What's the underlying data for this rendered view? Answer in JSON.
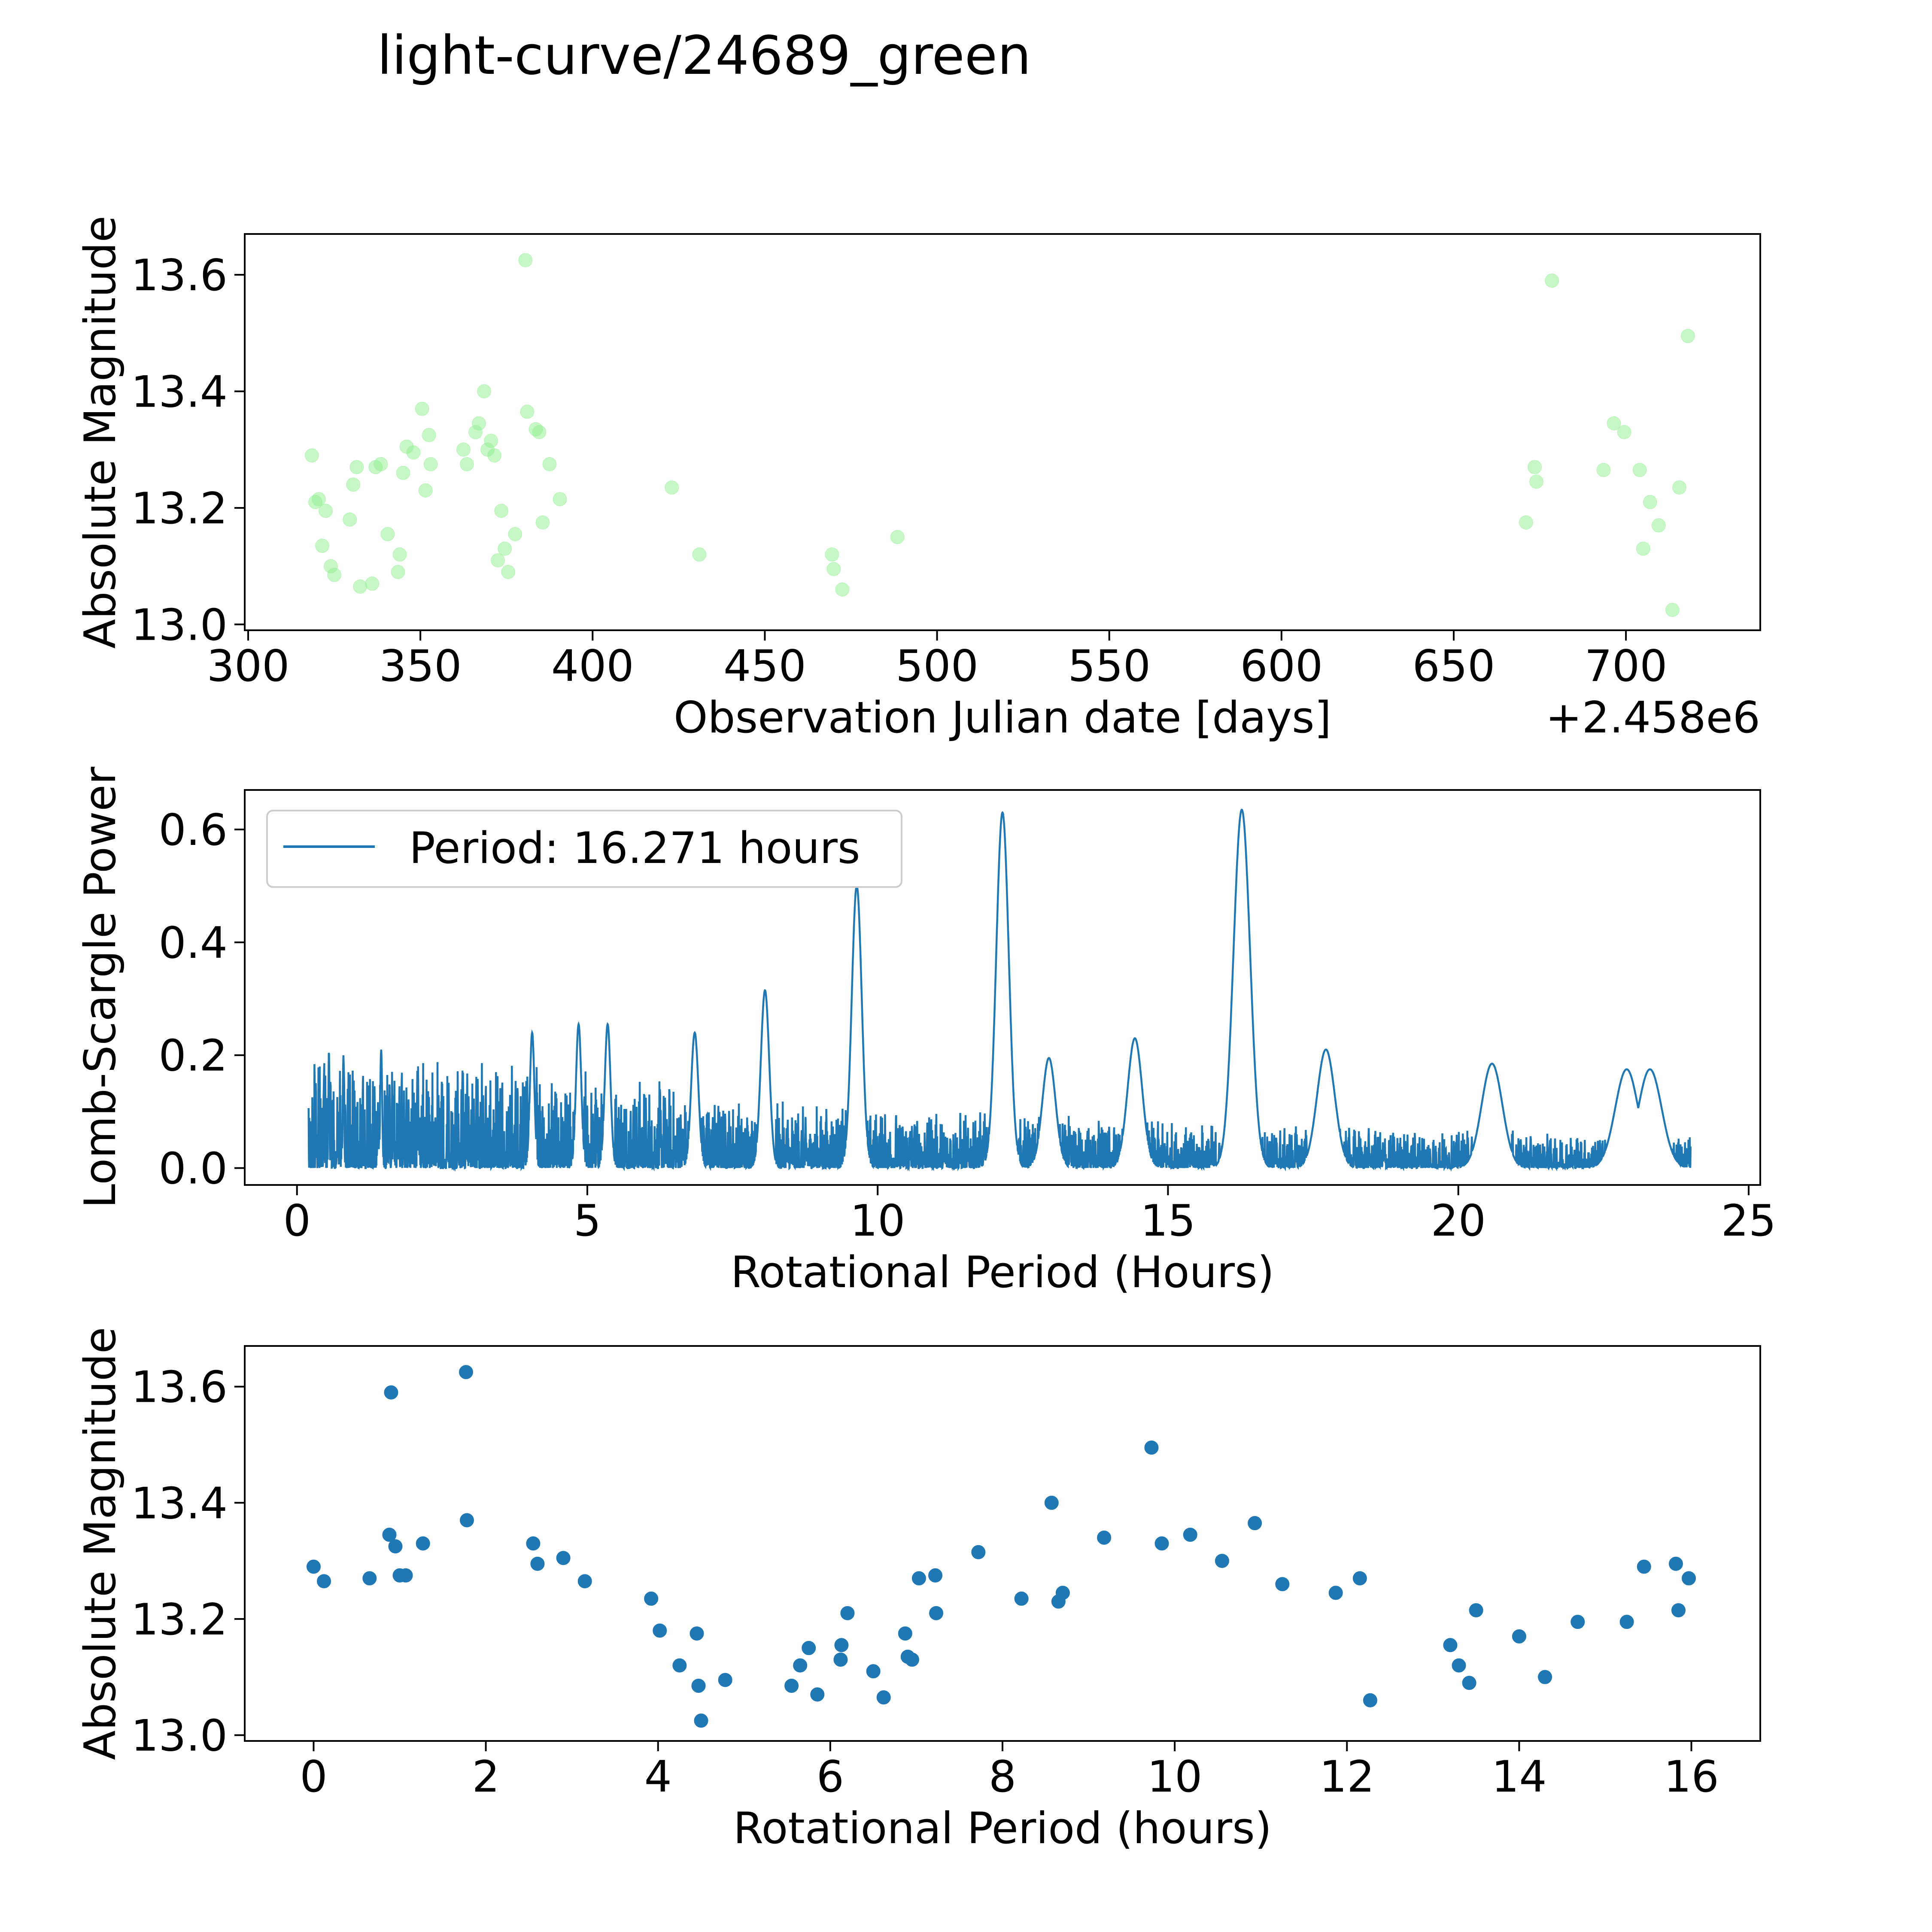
{
  "figure": {
    "title": "light-curve/24689_green"
  },
  "colors": {
    "light_curve_points": "#90ee90",
    "periodogram_line": "#1f77b4",
    "folded_points": "#1f77b4",
    "axes": "#000000",
    "background": "#ffffff"
  },
  "chart_data": [
    {
      "type": "scatter",
      "name": "light-curve",
      "title": "",
      "xlabel": "Observation Julian date [days]",
      "ylabel": "Absolute Magnitude",
      "offset_text": "+2.458e6",
      "xlim": [
        299,
        739
      ],
      "ylim": [
        12.99,
        13.67
      ],
      "xticks": [
        300,
        350,
        400,
        450,
        500,
        550,
        600,
        650,
        700
      ],
      "yticks": [
        13.0,
        13.2,
        13.4,
        13.6
      ],
      "ytick_labels": [
        "13.0",
        "13.2",
        "13.4",
        "13.6"
      ],
      "point_alpha": 0.5,
      "x": [
        318.5,
        319.5,
        320.5,
        321.5,
        322.5,
        324.0,
        325.0,
        329.5,
        330.5,
        331.5,
        332.5,
        336.0,
        337.0,
        338.5,
        340.5,
        343.5,
        344.0,
        345.0,
        346.0,
        348.0,
        350.5,
        351.5,
        352.5,
        353.0,
        362.5,
        363.5,
        366.0,
        367.0,
        368.5,
        369.5,
        370.5,
        371.5,
        372.5,
        373.5,
        374.5,
        375.5,
        377.5,
        380.5,
        381.0,
        383.5,
        384.5,
        385.5,
        387.5,
        390.5,
        423.0,
        431.0,
        469.5,
        470.0,
        472.5,
        488.5,
        671.0,
        673.5,
        674.0,
        678.5,
        693.5,
        696.5,
        699.5,
        704.0,
        705.0,
        707.0,
        709.5,
        713.5,
        715.5,
        718.0
      ],
      "y": [
        13.29,
        13.21,
        13.215,
        13.135,
        13.195,
        13.1,
        13.085,
        13.18,
        13.24,
        13.27,
        13.065,
        13.07,
        13.27,
        13.275,
        13.155,
        13.09,
        13.12,
        13.26,
        13.305,
        13.295,
        13.37,
        13.23,
        13.325,
        13.275,
        13.3,
        13.275,
        13.33,
        13.345,
        13.4,
        13.3,
        13.315,
        13.29,
        13.11,
        13.195,
        13.13,
        13.09,
        13.155,
        13.625,
        13.365,
        13.335,
        13.33,
        13.175,
        13.275,
        13.215,
        13.235,
        13.12,
        13.12,
        13.095,
        13.06,
        13.15,
        13.175,
        13.27,
        13.245,
        13.59,
        13.265,
        13.345,
        13.33,
        13.265,
        13.13,
        13.21,
        13.17,
        13.025,
        13.235,
        13.495
      ]
    },
    {
      "type": "line",
      "name": "periodogram",
      "xlabel": "Rotational Period (Hours)",
      "ylabel": "Lomb-Scargle Power",
      "legend": "Period: 16.271 hours",
      "legend_loc": "upper-left",
      "xlim": [
        -0.9,
        25.2
      ],
      "ylim": [
        -0.03,
        0.67
      ],
      "xticks": [
        0,
        5,
        10,
        15,
        20,
        25
      ],
      "yticks": [
        0.0,
        0.2,
        0.4,
        0.6
      ],
      "ytick_labels": [
        "0.0",
        "0.2",
        "0.4",
        "0.6"
      ],
      "x_range": [
        0.2,
        24.0
      ],
      "noise_envelope": [
        [
          0.2,
          0.2
        ],
        [
          2.0,
          0.19
        ],
        [
          5.0,
          0.18
        ],
        [
          8.0,
          0.12
        ],
        [
          12.0,
          0.1
        ],
        [
          16.0,
          0.08
        ],
        [
          20.0,
          0.07
        ],
        [
          24.0,
          0.06
        ]
      ],
      "peaks": [
        {
          "x": 8.06,
          "y": 0.315
        },
        {
          "x": 9.64,
          "y": 0.5
        },
        {
          "x": 12.15,
          "y": 0.63
        },
        {
          "x": 16.271,
          "y": 0.635
        },
        {
          "x": 14.43,
          "y": 0.23
        },
        {
          "x": 17.72,
          "y": 0.21
        },
        {
          "x": 12.95,
          "y": 0.195
        },
        {
          "x": 20.58,
          "y": 0.185
        },
        {
          "x": 22.9,
          "y": 0.175
        },
        {
          "x": 23.3,
          "y": 0.175
        },
        {
          "x": 4.85,
          "y": 0.255
        },
        {
          "x": 5.35,
          "y": 0.255
        },
        {
          "x": 6.85,
          "y": 0.24
        },
        {
          "x": 0.55,
          "y": 0.21
        },
        {
          "x": 0.8,
          "y": 0.2
        },
        {
          "x": 1.45,
          "y": 0.21
        },
        {
          "x": 4.05,
          "y": 0.24
        }
      ]
    },
    {
      "type": "scatter",
      "name": "folded-light-curve",
      "xlabel": "Rotational Period (hours)",
      "ylabel": "Absolute Magnitude",
      "xlim": [
        -0.8,
        16.8
      ],
      "ylim": [
        12.99,
        13.67
      ],
      "xticks": [
        0,
        2,
        4,
        6,
        8,
        10,
        12,
        14,
        16
      ],
      "yticks": [
        13.0,
        13.2,
        13.4,
        13.6
      ],
      "ytick_labels": [
        "13.0",
        "13.2",
        "13.4",
        "13.6"
      ],
      "x": [
        0.0,
        0.12,
        0.65,
        0.88,
        0.9,
        0.95,
        1.0,
        1.07,
        1.27,
        1.77,
        1.78,
        2.55,
        2.6,
        2.9,
        3.15,
        3.92,
        4.02,
        4.25,
        4.45,
        4.47,
        4.5,
        4.78,
        5.55,
        5.65,
        5.75,
        5.85,
        6.12,
        6.13,
        6.2,
        6.5,
        6.62,
        6.87,
        6.9,
        6.95,
        7.03,
        7.22,
        7.23,
        7.72,
        8.22,
        8.57,
        8.65,
        8.7,
        9.18,
        9.73,
        9.85,
        10.18,
        10.55,
        10.93,
        11.25,
        11.87,
        12.15,
        12.27,
        13.2,
        13.3,
        13.42,
        13.5,
        14.0,
        14.3,
        14.68,
        15.25,
        15.45,
        15.82,
        15.85,
        15.97
      ],
      "y": [
        13.29,
        13.265,
        13.27,
        13.345,
        13.59,
        13.325,
        13.275,
        13.275,
        13.33,
        13.625,
        13.37,
        13.33,
        13.295,
        13.305,
        13.265,
        13.235,
        13.18,
        13.12,
        13.175,
        13.085,
        13.025,
        13.095,
        13.085,
        13.12,
        13.15,
        13.07,
        13.13,
        13.155,
        13.21,
        13.11,
        13.065,
        13.175,
        13.135,
        13.13,
        13.27,
        13.275,
        13.21,
        13.315,
        13.235,
        13.4,
        13.23,
        13.245,
        13.34,
        13.495,
        13.33,
        13.345,
        13.3,
        13.365,
        13.26,
        13.245,
        13.27,
        13.06,
        13.155,
        13.12,
        13.09,
        13.215,
        13.17,
        13.1,
        13.195,
        13.195,
        13.29,
        13.295,
        13.215,
        13.27
      ]
    }
  ]
}
